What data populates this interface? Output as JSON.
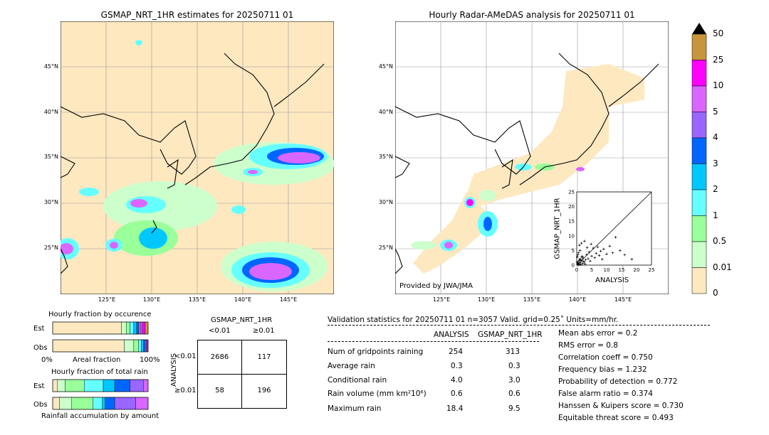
{
  "left_map": {
    "title": "GSMAP_NRT_1HR estimates for 20250711 01",
    "lat_labels": [
      "45°N",
      "40°N",
      "35°N",
      "30°N",
      "25°N"
    ],
    "lon_labels": [
      "125°E",
      "130°E",
      "135°E",
      "140°E",
      "145°E"
    ]
  },
  "right_map": {
    "title": "Hourly Radar-AMeDAS analysis for 20250711 01",
    "lat_labels": [
      "45°N",
      "40°N",
      "35°N",
      "30°N",
      "25°N"
    ],
    "lon_labels": [
      "125°E",
      "130°E",
      "135°E",
      "140°E",
      "145°E"
    ],
    "credit": "Provided by JWA/JMA"
  },
  "colorbar": {
    "ticks": [
      "50",
      "25",
      "10",
      "5",
      "4",
      "3",
      "2",
      "1",
      "0.5",
      "0.01",
      "0"
    ],
    "colors": [
      "#c8953c",
      "#ff00ff",
      "#d966ff",
      "#9966ff",
      "#0066ff",
      "#00c8ff",
      "#66ffff",
      "#99ff99",
      "#ccffcc",
      "#fde8c0"
    ]
  },
  "scatter": {
    "xlabel": "ANALYSIS",
    "ylabel": "GSMAP_NRT_1HR",
    "ticks": [
      "0",
      "5",
      "10",
      "15",
      "20",
      "25"
    ]
  },
  "fraction_occurrence": {
    "title": "Hourly fraction by occurence",
    "rows": [
      "Est",
      "Obs"
    ],
    "xleft": "0%",
    "xmid": "Areal fraction",
    "xright": "100%"
  },
  "fraction_total": {
    "title": "Hourly fraction of total rain",
    "rows": [
      "Est",
      "Obs"
    ],
    "xlabel": "Rainfall accumulation by amount"
  },
  "contingency": {
    "title": "GSMAP_NRT_1HR",
    "col_labels": [
      "<0.01",
      "≥0.01"
    ],
    "row_axis": "ANALYSIS",
    "row_labels": [
      "<0.01",
      "≥0.01"
    ],
    "cells": [
      [
        "2686",
        "117"
      ],
      [
        "58",
        "196"
      ]
    ]
  },
  "validation": {
    "header": "Validation statistics for 20250711 01  n=3057 Valid. grid=0.25˚ Units=mm/hr.",
    "col_analysis": "ANALYSIS",
    "col_gsmap": "GSMAP_NRT_1HR",
    "rows": [
      {
        "label": "Num of gridpoints raining",
        "analysis": "254",
        "gsmap": "313"
      },
      {
        "label": "Average rain",
        "analysis": "0.3",
        "gsmap": "0.3"
      },
      {
        "label": "Conditional rain",
        "analysis": "4.0",
        "gsmap": "3.0"
      },
      {
        "label": "Rain volume (mm km²10⁶)",
        "analysis": "0.6",
        "gsmap": "0.6"
      },
      {
        "label": "Maximum rain",
        "analysis": "18.4",
        "gsmap": "9.5"
      }
    ],
    "scores": [
      "Mean abs error =    0.2",
      "RMS error =    0.8",
      "Correlation coeff =  0.750",
      "Frequency bias =  1.232",
      "Probability of detection =  0.772",
      "False alarm ratio =  0.374",
      "Hanssen & Kuipers score =  0.730",
      "Equitable threat score =  0.493"
    ]
  },
  "chart_data": [
    {
      "type": "scatter",
      "title": "",
      "xlabel": "ANALYSIS",
      "ylabel": "GSMAP_NRT_1HR",
      "xlim": [
        0,
        25
      ],
      "ylim": [
        0,
        25
      ],
      "points": [
        [
          0.3,
          0.5
        ],
        [
          0.5,
          1.2
        ],
        [
          0.8,
          0.3
        ],
        [
          1.0,
          2.1
        ],
        [
          1.2,
          0.8
        ],
        [
          1.5,
          1.5
        ],
        [
          1.8,
          3.0
        ],
        [
          2.0,
          0.6
        ],
        [
          2.2,
          2.4
        ],
        [
          2.5,
          1.1
        ],
        [
          0.4,
          3.5
        ],
        [
          0.6,
          4.2
        ],
        [
          1.1,
          5.0
        ],
        [
          0.2,
          2.8
        ],
        [
          3.0,
          1.8
        ],
        [
          3.3,
          3.6
        ],
        [
          3.8,
          2.2
        ],
        [
          4.1,
          4.5
        ],
        [
          4.5,
          1.4
        ],
        [
          5.0,
          3.1
        ],
        [
          5.5,
          5.8
        ],
        [
          6.0,
          2.5
        ],
        [
          6.5,
          4.0
        ],
        [
          7.0,
          6.2
        ],
        [
          7.5,
          3.3
        ],
        [
          8.0,
          4.8
        ],
        [
          8.5,
          2.0
        ],
        [
          9.0,
          5.5
        ],
        [
          10.0,
          3.8
        ],
        [
          11.0,
          6.5
        ],
        [
          12.0,
          4.2
        ],
        [
          13.0,
          9.5
        ],
        [
          14.5,
          5.0
        ],
        [
          16.0,
          3.5
        ],
        [
          18.4,
          2.0
        ],
        [
          0.1,
          1.0
        ],
        [
          0.7,
          0.1
        ],
        [
          1.4,
          0.2
        ],
        [
          2.8,
          0.4
        ],
        [
          0.9,
          6.8
        ],
        [
          1.6,
          7.5
        ],
        [
          2.6,
          8.2
        ],
        [
          3.5,
          6.0
        ],
        [
          4.8,
          7.2
        ],
        [
          0.3,
          0.2
        ],
        [
          0.5,
          0.6
        ],
        [
          1.3,
          1.9
        ],
        [
          2.1,
          1.4
        ],
        [
          1.7,
          2.7
        ],
        [
          0.8,
          1.6
        ]
      ],
      "diagonal": true
    },
    {
      "type": "bar",
      "title": "Hourly fraction by occurence",
      "rows": [
        "Est",
        "Obs"
      ],
      "segments_fraction": {
        "Est": [
          0.0,
          0.72,
          0.05,
          0.04,
          0.04,
          0.03,
          0.02,
          0.02,
          0.02,
          0.03,
          0.03
        ],
        "Obs": [
          0.0,
          0.75,
          0.1,
          0.05,
          0.03,
          0.02,
          0.02,
          0.01,
          0.01,
          0.01,
          0.0
        ]
      }
    },
    {
      "type": "bar",
      "title": "Hourly fraction of total rain",
      "rows": [
        "Est",
        "Obs"
      ],
      "segments_fraction": {
        "Est": [
          0.0,
          0.05,
          0.08,
          0.2,
          0.2,
          0.12,
          0.16,
          0.14,
          0.05,
          0.0,
          0.0
        ],
        "Obs": [
          0.0,
          0.07,
          0.13,
          0.22,
          0.1,
          0.03,
          0.1,
          0.22,
          0.13,
          0.0,
          0.0
        ]
      }
    }
  ]
}
